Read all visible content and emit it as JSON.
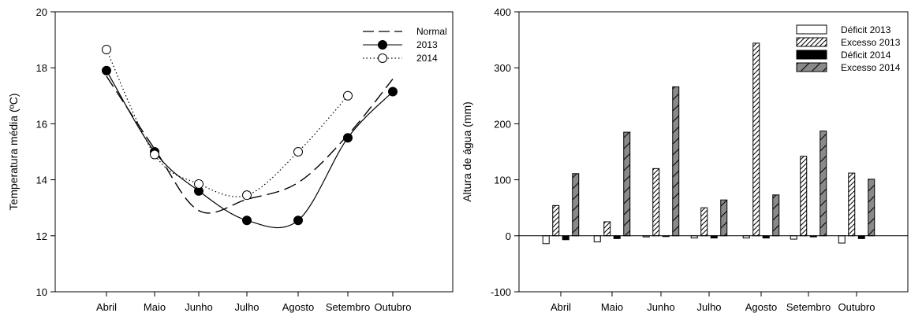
{
  "chart_data": [
    {
      "type": "line",
      "ylabel": "Temperatura média (ºC)",
      "xlabel": "",
      "categories": [
        "Abril",
        "Maio",
        "Junho",
        "Julho",
        "Agosto",
        "Setembro",
        "Outubro"
      ],
      "ylim": [
        10,
        20
      ],
      "yticks": [
        10,
        12,
        14,
        16,
        18,
        20
      ],
      "grid": false,
      "legend_position": "top-right",
      "series": [
        {
          "name": "Normal",
          "style": "dashed",
          "marker": "none",
          "values": [
            17.7,
            15.1,
            12.9,
            13.3,
            13.9,
            15.6,
            17.6
          ]
        },
        {
          "name": "2013",
          "style": "solid",
          "marker": "filled-circle",
          "values": [
            17.9,
            15.0,
            13.6,
            12.55,
            12.55,
            15.5,
            17.15
          ]
        },
        {
          "name": "2014",
          "style": "dotted",
          "marker": "open-circle",
          "values": [
            18.65,
            14.9,
            13.85,
            13.45,
            15.0,
            17.0,
            null
          ]
        }
      ]
    },
    {
      "type": "bar",
      "ylabel": "Altura de água (mm)",
      "xlabel": "",
      "categories": [
        "Abril",
        "Maio",
        "Junho",
        "Julho",
        "Agosto",
        "Setembro",
        "Outubro"
      ],
      "ylim": [
        -100,
        400
      ],
      "yticks": [
        -100,
        0,
        100,
        200,
        300,
        400
      ],
      "grid": false,
      "legend_position": "top-right",
      "series": [
        {
          "name": "Déficit 2013",
          "fill": "white",
          "values": [
            -14,
            -11,
            -2,
            -4,
            -4,
            -6,
            -13
          ]
        },
        {
          "name": "Excesso 2013",
          "fill": "hatch",
          "values": [
            54,
            25,
            120,
            50,
            344,
            142,
            112
          ]
        },
        {
          "name": "Déficit 2014",
          "fill": "black",
          "values": [
            -7,
            -5,
            -1,
            -4,
            -4,
            -2,
            -5
          ]
        },
        {
          "name": "Excesso 2014",
          "fill": "gray-hatch",
          "values": [
            111,
            185,
            266,
            64,
            73,
            187,
            101
          ]
        }
      ]
    }
  ]
}
